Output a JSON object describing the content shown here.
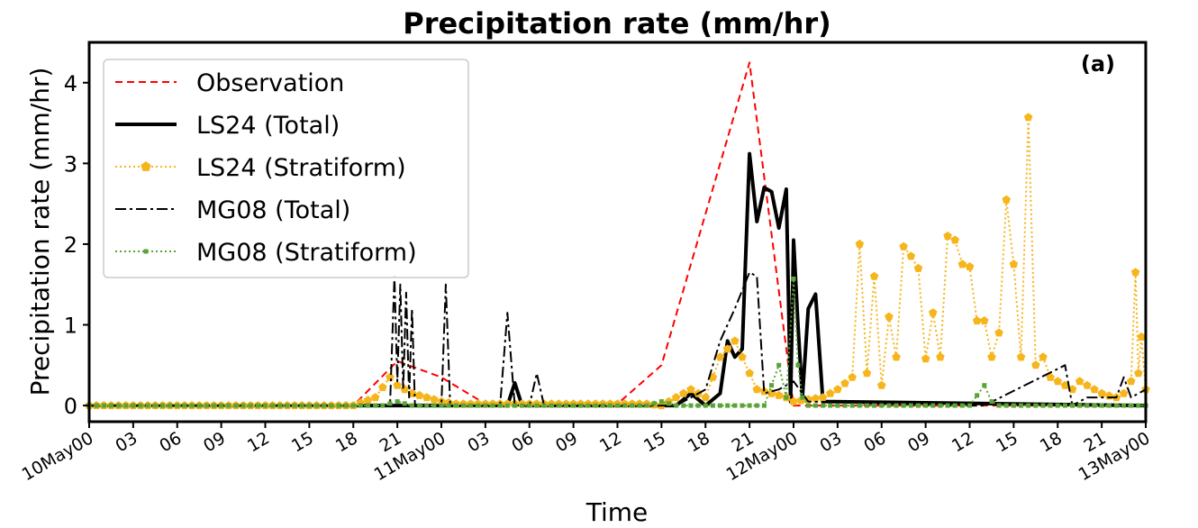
{
  "chart_data": {
    "type": "line",
    "title": "Precipitation rate (mm/hr)",
    "panel_label": "(a)",
    "xlabel": "Time",
    "ylabel": "Precipitation rate (mm/hr)",
    "xlim": [
      0,
      72
    ],
    "ylim": [
      -0.2,
      4.5
    ],
    "grid": false,
    "legend_position": "top-left",
    "xticks": [
      {
        "x": 0,
        "label": "10May00"
      },
      {
        "x": 3,
        "label": "03"
      },
      {
        "x": 6,
        "label": "06"
      },
      {
        "x": 9,
        "label": "09"
      },
      {
        "x": 12,
        "label": "12"
      },
      {
        "x": 15,
        "label": "15"
      },
      {
        "x": 18,
        "label": "18"
      },
      {
        "x": 21,
        "label": "21"
      },
      {
        "x": 24,
        "label": "11May00"
      },
      {
        "x": 27,
        "label": "03"
      },
      {
        "x": 30,
        "label": "06"
      },
      {
        "x": 33,
        "label": "09"
      },
      {
        "x": 36,
        "label": "12"
      },
      {
        "x": 39,
        "label": "15"
      },
      {
        "x": 42,
        "label": "18"
      },
      {
        "x": 45,
        "label": "21"
      },
      {
        "x": 48,
        "label": "12May00"
      },
      {
        "x": 51,
        "label": "03"
      },
      {
        "x": 54,
        "label": "06"
      },
      {
        "x": 57,
        "label": "09"
      },
      {
        "x": 60,
        "label": "12"
      },
      {
        "x": 63,
        "label": "15"
      },
      {
        "x": 66,
        "label": "18"
      },
      {
        "x": 69,
        "label": "21"
      },
      {
        "x": 72,
        "label": "13May00"
      }
    ],
    "yticks": [
      0,
      1,
      2,
      3,
      4
    ],
    "x_units": "hours since 10May00 00 UTC",
    "series": [
      {
        "name": "Observation",
        "color": "#ff0000",
        "style": "dashed",
        "marker": "none",
        "points": [
          [
            0,
            0
          ],
          [
            18,
            0
          ],
          [
            21,
            0.55
          ],
          [
            24,
            0.35
          ],
          [
            27,
            0.02
          ],
          [
            36,
            0.02
          ],
          [
            39,
            0.5
          ],
          [
            45,
            4.25
          ],
          [
            48,
            0
          ],
          [
            56,
            0
          ],
          [
            60,
            0
          ],
          [
            63,
            0
          ],
          [
            66,
            0
          ],
          [
            69,
            0
          ],
          [
            72,
            0
          ]
        ]
      },
      {
        "name": "LS24 (Total)",
        "color": "#000000",
        "style": "solid",
        "marker": "none",
        "points": [
          [
            0,
            0
          ],
          [
            28.5,
            0
          ],
          [
            29,
            0.28
          ],
          [
            29.5,
            0
          ],
          [
            40,
            0
          ],
          [
            41,
            0.15
          ],
          [
            42,
            0
          ],
          [
            43,
            0.15
          ],
          [
            43.5,
            0.8
          ],
          [
            44,
            0.6
          ],
          [
            44.5,
            0.7
          ],
          [
            45,
            3.12
          ],
          [
            45.5,
            2.28
          ],
          [
            46,
            2.7
          ],
          [
            46.5,
            2.65
          ],
          [
            47,
            2.2
          ],
          [
            47.5,
            2.68
          ],
          [
            47.8,
            0.05
          ],
          [
            48,
            2.05
          ],
          [
            48.3,
            1.0
          ],
          [
            48.6,
            0.1
          ],
          [
            49,
            1.2
          ],
          [
            49.5,
            1.38
          ],
          [
            50,
            0.05
          ],
          [
            72,
            0
          ]
        ]
      },
      {
        "name": "LS24 (Stratiform)",
        "color": "#f5b51b",
        "style": "dotted",
        "marker": "pentagon",
        "points": [
          [
            0,
            0
          ],
          [
            18,
            0
          ],
          [
            19.5,
            0.1
          ],
          [
            20.5,
            0.35
          ],
          [
            21,
            0.25
          ],
          [
            21.5,
            0.2
          ],
          [
            22,
            0.15
          ],
          [
            23,
            0.1
          ],
          [
            24,
            0.05
          ],
          [
            25,
            0.02
          ],
          [
            33,
            0.02
          ],
          [
            38,
            0.02
          ],
          [
            39,
            0
          ],
          [
            40,
            0.1
          ],
          [
            41,
            0.2
          ],
          [
            42,
            0.1
          ],
          [
            43,
            0.6
          ],
          [
            44,
            0.8
          ],
          [
            45,
            0.4
          ],
          [
            45.5,
            0.2
          ],
          [
            46.5,
            0.15
          ],
          [
            47.5,
            0.1
          ],
          [
            48,
            0.05
          ],
          [
            50,
            0.1
          ],
          [
            51,
            0.2
          ],
          [
            52,
            0.35
          ],
          [
            52.5,
            2.0
          ],
          [
            53,
            0.4
          ],
          [
            53.5,
            1.6
          ],
          [
            54,
            0.25
          ],
          [
            54.5,
            1.1
          ],
          [
            55,
            0.6
          ],
          [
            55.5,
            1.97
          ],
          [
            56,
            1.85
          ],
          [
            56.5,
            1.7
          ],
          [
            57,
            0.58
          ],
          [
            57.5,
            1.15
          ],
          [
            58,
            0.6
          ],
          [
            58.5,
            2.1
          ],
          [
            59,
            2.05
          ],
          [
            59.5,
            1.75
          ],
          [
            60,
            1.72
          ],
          [
            60.5,
            1.05
          ],
          [
            61,
            1.05
          ],
          [
            61.5,
            0.6
          ],
          [
            62,
            0.9
          ],
          [
            62.5,
            2.55
          ],
          [
            63,
            1.75
          ],
          [
            63.5,
            0.6
          ],
          [
            64,
            3.57
          ],
          [
            64.5,
            0.5
          ],
          [
            65,
            0.6
          ],
          [
            65.5,
            0.35
          ],
          [
            66,
            0.3
          ],
          [
            66.5,
            0.25
          ],
          [
            67,
            0.2
          ],
          [
            67.5,
            0.3
          ],
          [
            68,
            0.25
          ],
          [
            68.5,
            0.2
          ],
          [
            69,
            0.15
          ],
          [
            69.5,
            0.12
          ],
          [
            70,
            0.1
          ],
          [
            70.5,
            0.15
          ],
          [
            71,
            0.3
          ],
          [
            71.3,
            1.65
          ],
          [
            71.5,
            0.4
          ],
          [
            71.7,
            0.85
          ],
          [
            72,
            0.2
          ]
        ]
      },
      {
        "name": "MG08 (Total)",
        "color": "#000000",
        "style": "dashdot",
        "marker": "none",
        "points": [
          [
            0,
            0
          ],
          [
            20.5,
            0
          ],
          [
            20.8,
            1.6
          ],
          [
            21,
            0.3
          ],
          [
            21.2,
            1.5
          ],
          [
            21.4,
            0.2
          ],
          [
            21.6,
            1.4
          ],
          [
            21.8,
            0.1
          ],
          [
            22,
            1.2
          ],
          [
            22.2,
            0
          ],
          [
            24,
            0
          ],
          [
            24.3,
            1.5
          ],
          [
            24.6,
            0
          ],
          [
            28,
            0
          ],
          [
            28.5,
            1.15
          ],
          [
            29,
            0
          ],
          [
            30,
            0
          ],
          [
            30.5,
            0.4
          ],
          [
            31,
            0
          ],
          [
            40,
            0
          ],
          [
            42,
            0.2
          ],
          [
            43,
            0.8
          ],
          [
            44,
            1.2
          ],
          [
            45,
            1.65
          ],
          [
            45.5,
            1.6
          ],
          [
            46,
            0.15
          ],
          [
            47,
            0.2
          ],
          [
            48,
            0.3
          ],
          [
            49,
            0.05
          ],
          [
            58,
            0
          ],
          [
            60,
            0
          ],
          [
            61,
            0
          ],
          [
            66.5,
            0.5
          ],
          [
            67,
            0
          ],
          [
            68,
            0.1
          ],
          [
            70,
            0.1
          ],
          [
            70.5,
            0.35
          ],
          [
            71,
            0.1
          ],
          [
            72,
            0.2
          ]
        ]
      },
      {
        "name": "MG08 (Stratiform)",
        "color": "#5aa336",
        "style": "dotted",
        "marker": "square",
        "points": [
          [
            0,
            0
          ],
          [
            20,
            0
          ],
          [
            21,
            0.05
          ],
          [
            22,
            0
          ],
          [
            38,
            0
          ],
          [
            39,
            0.05
          ],
          [
            40,
            0
          ],
          [
            46,
            0
          ],
          [
            47,
            0.5
          ],
          [
            47.5,
            0.1
          ],
          [
            48,
            1.57
          ],
          [
            48.3,
            0.5
          ],
          [
            48.6,
            0.1
          ],
          [
            49,
            0
          ],
          [
            57,
            0
          ],
          [
            58,
            0
          ],
          [
            59,
            0
          ],
          [
            60,
            0
          ],
          [
            61,
            0.25
          ],
          [
            61.5,
            0.05
          ],
          [
            62,
            0
          ],
          [
            72,
            0
          ]
        ]
      }
    ]
  }
}
